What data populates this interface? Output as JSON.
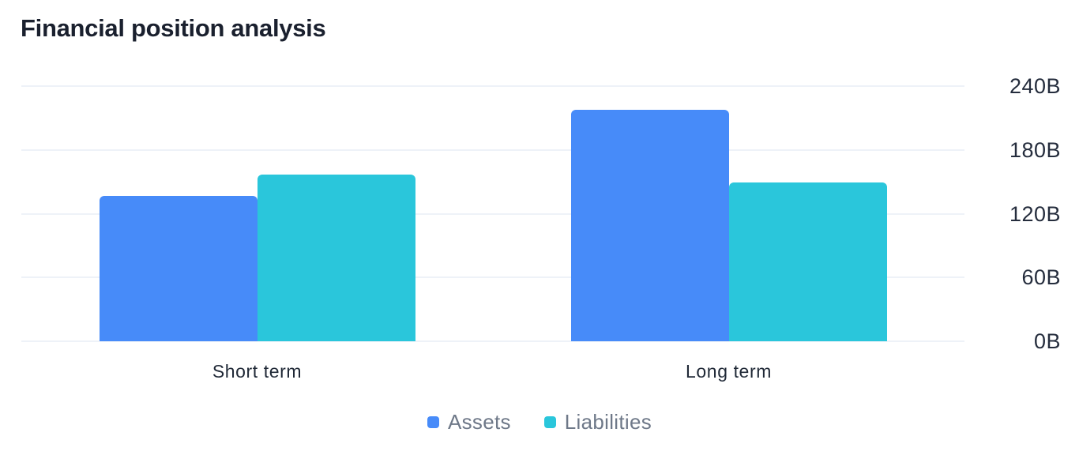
{
  "title": "Financial position analysis",
  "chart_data": {
    "type": "bar",
    "title": "Financial position analysis",
    "categories": [
      "Short term",
      "Long term"
    ],
    "series": [
      {
        "name": "Assets",
        "color": "#478BF9",
        "values": [
          137,
          218
        ]
      },
      {
        "name": "Liabilities",
        "color": "#2AC6DB",
        "values": [
          157,
          149
        ]
      }
    ],
    "value_unit": "B",
    "ylim": [
      0,
      240
    ],
    "yticks": [
      {
        "value": 0,
        "label": "0B"
      },
      {
        "value": 60,
        "label": "60B"
      },
      {
        "value": 120,
        "label": "120B"
      },
      {
        "value": 180,
        "label": "180B"
      },
      {
        "value": 240,
        "label": "240B"
      }
    ],
    "y_axis_side": "right",
    "grid": "horizontal",
    "legend_position": "bottom-center"
  },
  "colors": {
    "title": "#1A202E",
    "tick_label": "#252D3D",
    "category_label": "#1F2836",
    "legend_label": "#6E7888",
    "gridline": "#EEF2F8",
    "background": "#FFFFFF",
    "assets": "#478BF9",
    "liabilities": "#2AC6DB"
  }
}
